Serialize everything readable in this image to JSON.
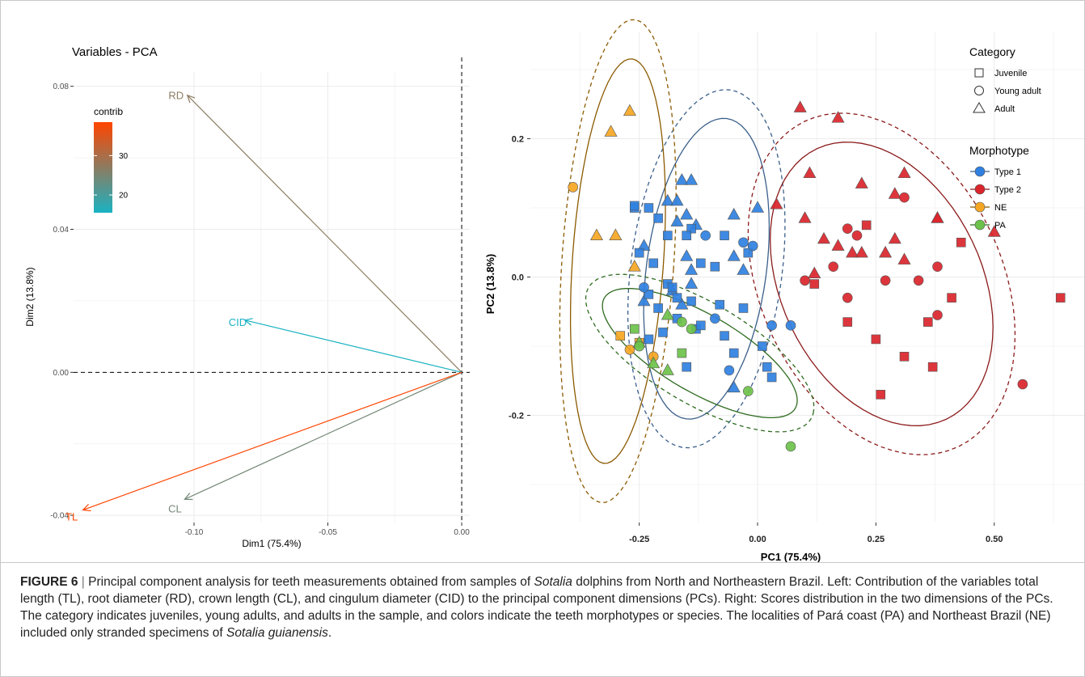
{
  "caption": {
    "label": "FIGURE 6",
    "separator": " | ",
    "parts": [
      {
        "t": "Principal component analysis for teeth measurements obtained from samples of ",
        "i": false
      },
      {
        "t": "Sotalia",
        "i": true
      },
      {
        "t": " dolphins from North and Northeastern Brazil. Left: Contribution of the variables total length (TL), root diameter (RD), crown length (CL), and cingulum diameter (CID) to the principal component dimensions (PCs). Right: Scores distribution in the two dimensions of the PCs. The category indicates juveniles, young adults, and adults in the sample, and colors indicate the teeth morphotypes or species. The localities of Pará coast (PA) and Northeast Brazil (NE) included only stranded specimens of ",
        "i": false
      },
      {
        "t": "Sotalia guianensis",
        "i": true
      },
      {
        "t": ".",
        "i": false
      }
    ]
  },
  "chart_data": [
    {
      "type": "scatter",
      "title": "Variables - PCA",
      "xlabel": "Dim1 (75.4%)",
      "ylabel": "Dim2 (13.8%)",
      "xlim": [
        -0.145,
        0.003
      ],
      "ylim": [
        -0.042,
        0.084
      ],
      "xticks": [
        -0.1,
        -0.05,
        0.0
      ],
      "xtick_labels": [
        "-0.10",
        "-0.05",
        "0.00"
      ],
      "yticks": [
        -0.04,
        0.0,
        0.04,
        0.08
      ],
      "ytick_labels": [
        "-0.04",
        "0.00",
        "0.04",
        "0.08"
      ],
      "grid": true,
      "legend": {
        "title": "contrib",
        "position": "top-left",
        "ticks": [
          20,
          30
        ],
        "tick_labels": [
          "20",
          "30"
        ],
        "range": [
          15.5,
          38.5
        ],
        "low_color": "#1ab2c2",
        "high_color": "#ff4500"
      },
      "arrows": [
        {
          "label": "RD",
          "x": -0.1025,
          "y": 0.0775,
          "contrib": 27.0
        },
        {
          "label": "CID",
          "x": -0.081,
          "y": 0.0146,
          "contrib": 15.5
        },
        {
          "label": "CL",
          "x": -0.1035,
          "y": -0.0355,
          "contrib": 24.5
        },
        {
          "label": "TL",
          "x": -0.1415,
          "y": -0.0385,
          "contrib": 38.5
        }
      ]
    },
    {
      "type": "scatter",
      "xlabel": "PC1 (75.4%)",
      "ylabel": "PC2 (13.8%)",
      "xlim": [
        -0.48,
        0.69
      ],
      "ylim": [
        -0.355,
        0.355
      ],
      "xticks": [
        -0.25,
        0.0,
        0.25,
        0.5
      ],
      "xtick_labels": [
        "-0.25",
        "0.00",
        "0.25",
        "0.50"
      ],
      "yticks": [
        -0.2,
        0.0,
        0.2
      ],
      "ytick_labels": [
        "-0.2",
        "0.0",
        "0.2"
      ],
      "grid": true,
      "legend": {
        "position": "right",
        "category_title": "Category",
        "categories": [
          "Juvenile",
          "Young adult",
          "Adult"
        ],
        "morphotype_title": "Morphotype",
        "morphotypes": [
          "Type 1",
          "Type 2",
          "NE",
          "PA"
        ]
      },
      "colors": {
        "Type 1": "#2f80e0",
        "Type 2": "#d9252b",
        "NE": "#f5a623",
        "PA": "#6cc24a"
      },
      "ellipse_colors": {
        "Type 1": "#3a5f8a",
        "Type 2": "#8b1a1a",
        "NE": "#8b5a00",
        "PA": "#2e6b1f"
      },
      "ellipses": [
        {
          "group": "Type 1",
          "style": "solid",
          "cx": -0.108,
          "cy": 0.012,
          "rx": 0.125,
          "ry": 0.222,
          "angle": -14
        },
        {
          "group": "Type 1",
          "style": "dashed",
          "cx": -0.108,
          "cy": 0.012,
          "rx": 0.158,
          "ry": 0.264,
          "angle": -14
        },
        {
          "group": "Type 2",
          "style": "solid",
          "cx": 0.262,
          "cy": -0.01,
          "rx": 0.255,
          "ry": 0.18,
          "angle": -33
        },
        {
          "group": "Type 2",
          "style": "dashed",
          "cx": 0.262,
          "cy": -0.01,
          "rx": 0.305,
          "ry": 0.218,
          "angle": -33
        },
        {
          "group": "NE",
          "style": "solid",
          "cx": -0.295,
          "cy": 0.023,
          "rx": 0.096,
          "ry": 0.294,
          "angle": -6
        },
        {
          "group": "NE",
          "style": "dashed",
          "cx": -0.295,
          "cy": 0.023,
          "rx": 0.118,
          "ry": 0.351,
          "angle": -6
        },
        {
          "group": "PA",
          "style": "solid",
          "cx": -0.122,
          "cy": -0.11,
          "rx": 0.218,
          "ry": 0.06,
          "angle": -20
        },
        {
          "group": "PA",
          "style": "dashed",
          "cx": -0.122,
          "cy": -0.11,
          "rx": 0.255,
          "ry": 0.078,
          "angle": -20
        }
      ],
      "points": [
        {
          "x": -0.19,
          "y": 0.11,
          "g": "Type 1",
          "c": "Adult"
        },
        {
          "x": -0.16,
          "y": 0.14,
          "g": "Type 1",
          "c": "Adult"
        },
        {
          "x": -0.14,
          "y": 0.14,
          "g": "Type 1",
          "c": "Adult"
        },
        {
          "x": -0.17,
          "y": 0.11,
          "g": "Type 1",
          "c": "Adult"
        },
        {
          "x": -0.15,
          "y": 0.09,
          "g": "Type 1",
          "c": "Adult"
        },
        {
          "x": -0.13,
          "y": 0.075,
          "g": "Type 1",
          "c": "Adult"
        },
        {
          "x": -0.17,
          "y": 0.08,
          "g": "Type 1",
          "c": "Adult"
        },
        {
          "x": -0.05,
          "y": 0.09,
          "g": "Type 1",
          "c": "Adult"
        },
        {
          "x": 0.0,
          "y": 0.1,
          "g": "Type 1",
          "c": "Adult"
        },
        {
          "x": -0.24,
          "y": 0.045,
          "g": "Type 1",
          "c": "Adult"
        },
        {
          "x": -0.15,
          "y": 0.03,
          "g": "Type 1",
          "c": "Adult"
        },
        {
          "x": -0.05,
          "y": 0.03,
          "g": "Type 1",
          "c": "Adult"
        },
        {
          "x": -0.14,
          "y": 0.01,
          "g": "Type 1",
          "c": "Adult"
        },
        {
          "x": -0.14,
          "y": -0.01,
          "g": "Type 1",
          "c": "Adult"
        },
        {
          "x": -0.03,
          "y": 0.01,
          "g": "Type 1",
          "c": "Adult"
        },
        {
          "x": -0.18,
          "y": -0.02,
          "g": "Type 1",
          "c": "Adult"
        },
        {
          "x": -0.16,
          "y": -0.04,
          "g": "Type 1",
          "c": "Adult"
        },
        {
          "x": -0.24,
          "y": -0.035,
          "g": "Type 1",
          "c": "Adult"
        },
        {
          "x": -0.05,
          "y": -0.16,
          "g": "Type 1",
          "c": "Adult"
        },
        {
          "x": -0.26,
          "y": 0.1,
          "g": "Type 1",
          "c": "Juvenile"
        },
        {
          "x": -0.26,
          "y": 0.103,
          "g": "Type 1",
          "c": "Juvenile"
        },
        {
          "x": -0.23,
          "y": 0.1,
          "g": "Type 1",
          "c": "Juvenile"
        },
        {
          "x": -0.21,
          "y": 0.085,
          "g": "Type 1",
          "c": "Juvenile"
        },
        {
          "x": -0.19,
          "y": 0.06,
          "g": "Type 1",
          "c": "Juvenile"
        },
        {
          "x": -0.14,
          "y": 0.07,
          "g": "Type 1",
          "c": "Juvenile"
        },
        {
          "x": -0.15,
          "y": 0.06,
          "g": "Type 1",
          "c": "Juvenile"
        },
        {
          "x": -0.07,
          "y": 0.06,
          "g": "Type 1",
          "c": "Juvenile"
        },
        {
          "x": -0.25,
          "y": 0.035,
          "g": "Type 1",
          "c": "Juvenile"
        },
        {
          "x": -0.22,
          "y": 0.02,
          "g": "Type 1",
          "c": "Juvenile"
        },
        {
          "x": -0.12,
          "y": 0.02,
          "g": "Type 1",
          "c": "Juvenile"
        },
        {
          "x": -0.02,
          "y": 0.035,
          "g": "Type 1",
          "c": "Juvenile"
        },
        {
          "x": -0.09,
          "y": 0.015,
          "g": "Type 1",
          "c": "Juvenile"
        },
        {
          "x": -0.19,
          "y": -0.01,
          "g": "Type 1",
          "c": "Juvenile"
        },
        {
          "x": -0.18,
          "y": -0.015,
          "g": "Type 1",
          "c": "Juvenile"
        },
        {
          "x": -0.23,
          "y": -0.025,
          "g": "Type 1",
          "c": "Juvenile"
        },
        {
          "x": -0.17,
          "y": -0.03,
          "g": "Type 1",
          "c": "Juvenile"
        },
        {
          "x": -0.21,
          "y": -0.045,
          "g": "Type 1",
          "c": "Juvenile"
        },
        {
          "x": -0.14,
          "y": -0.035,
          "g": "Type 1",
          "c": "Juvenile"
        },
        {
          "x": -0.08,
          "y": -0.04,
          "g": "Type 1",
          "c": "Juvenile"
        },
        {
          "x": -0.03,
          "y": -0.045,
          "g": "Type 1",
          "c": "Juvenile"
        },
        {
          "x": -0.17,
          "y": -0.06,
          "g": "Type 1",
          "c": "Juvenile"
        },
        {
          "x": -0.13,
          "y": -0.075,
          "g": "Type 1",
          "c": "Juvenile"
        },
        {
          "x": -0.2,
          "y": -0.08,
          "g": "Type 1",
          "c": "Juvenile"
        },
        {
          "x": -0.07,
          "y": -0.085,
          "g": "Type 1",
          "c": "Juvenile"
        },
        {
          "x": -0.12,
          "y": -0.07,
          "g": "Type 1",
          "c": "Juvenile"
        },
        {
          "x": -0.23,
          "y": -0.09,
          "g": "Type 1",
          "c": "Juvenile"
        },
        {
          "x": 0.01,
          "y": -0.1,
          "g": "Type 1",
          "c": "Juvenile"
        },
        {
          "x": -0.05,
          "y": -0.11,
          "g": "Type 1",
          "c": "Juvenile"
        },
        {
          "x": 0.02,
          "y": -0.13,
          "g": "Type 1",
          "c": "Juvenile"
        },
        {
          "x": 0.03,
          "y": -0.145,
          "g": "Type 1",
          "c": "Juvenile"
        },
        {
          "x": -0.15,
          "y": -0.13,
          "g": "Type 1",
          "c": "Juvenile"
        },
        {
          "x": -0.11,
          "y": 0.06,
          "g": "Type 1",
          "c": "Young adult"
        },
        {
          "x": -0.03,
          "y": 0.05,
          "g": "Type 1",
          "c": "Young adult"
        },
        {
          "x": -0.01,
          "y": 0.045,
          "g": "Type 1",
          "c": "Young adult"
        },
        {
          "x": -0.24,
          "y": -0.015,
          "g": "Type 1",
          "c": "Young adult"
        },
        {
          "x": -0.09,
          "y": -0.06,
          "g": "Type 1",
          "c": "Young adult"
        },
        {
          "x": 0.03,
          "y": -0.07,
          "g": "Type 1",
          "c": "Young adult"
        },
        {
          "x": 0.07,
          "y": -0.07,
          "g": "Type 1",
          "c": "Young adult"
        },
        {
          "x": -0.06,
          "y": -0.135,
          "g": "Type 1",
          "c": "Young adult"
        },
        {
          "x": 0.17,
          "y": 0.23,
          "g": "Type 2",
          "c": "Adult"
        },
        {
          "x": 0.09,
          "y": 0.245,
          "g": "Type 2",
          "c": "Adult"
        },
        {
          "x": 0.11,
          "y": 0.15,
          "g": "Type 2",
          "c": "Adult"
        },
        {
          "x": 0.22,
          "y": 0.135,
          "g": "Type 2",
          "c": "Adult"
        },
        {
          "x": 0.31,
          "y": 0.15,
          "g": "Type 2",
          "c": "Adult"
        },
        {
          "x": 0.04,
          "y": 0.105,
          "g": "Type 2",
          "c": "Adult"
        },
        {
          "x": 0.1,
          "y": 0.085,
          "g": "Type 2",
          "c": "Adult"
        },
        {
          "x": 0.29,
          "y": 0.12,
          "g": "Type 2",
          "c": "Adult"
        },
        {
          "x": 0.38,
          "y": 0.085,
          "g": "Type 2",
          "c": "Adult"
        },
        {
          "x": 0.38,
          "y": 0.085,
          "g": "Type 2",
          "c": "Adult"
        },
        {
          "x": 0.14,
          "y": 0.055,
          "g": "Type 2",
          "c": "Adult"
        },
        {
          "x": 0.29,
          "y": 0.055,
          "g": "Type 2",
          "c": "Adult"
        },
        {
          "x": 0.5,
          "y": 0.065,
          "g": "Type 2",
          "c": "Adult"
        },
        {
          "x": 0.17,
          "y": 0.045,
          "g": "Type 2",
          "c": "Adult"
        },
        {
          "x": 0.2,
          "y": 0.035,
          "g": "Type 2",
          "c": "Adult"
        },
        {
          "x": 0.22,
          "y": 0.035,
          "g": "Type 2",
          "c": "Adult"
        },
        {
          "x": 0.27,
          "y": 0.035,
          "g": "Type 2",
          "c": "Adult"
        },
        {
          "x": 0.31,
          "y": 0.025,
          "g": "Type 2",
          "c": "Adult"
        },
        {
          "x": 0.12,
          "y": 0.005,
          "g": "Type 2",
          "c": "Adult"
        },
        {
          "x": 0.23,
          "y": 0.075,
          "g": "Type 2",
          "c": "Juvenile"
        },
        {
          "x": 0.43,
          "y": 0.05,
          "g": "Type 2",
          "c": "Juvenile"
        },
        {
          "x": 0.12,
          "y": -0.01,
          "g": "Type 2",
          "c": "Juvenile"
        },
        {
          "x": 0.41,
          "y": -0.03,
          "g": "Type 2",
          "c": "Juvenile"
        },
        {
          "x": 0.19,
          "y": -0.065,
          "g": "Type 2",
          "c": "Juvenile"
        },
        {
          "x": 0.36,
          "y": -0.065,
          "g": "Type 2",
          "c": "Juvenile"
        },
        {
          "x": 0.25,
          "y": -0.09,
          "g": "Type 2",
          "c": "Juvenile"
        },
        {
          "x": 0.31,
          "y": -0.115,
          "g": "Type 2",
          "c": "Juvenile"
        },
        {
          "x": 0.37,
          "y": -0.13,
          "g": "Type 2",
          "c": "Juvenile"
        },
        {
          "x": 0.26,
          "y": -0.17,
          "g": "Type 2",
          "c": "Juvenile"
        },
        {
          "x": 0.64,
          "y": -0.03,
          "g": "Type 2",
          "c": "Juvenile"
        },
        {
          "x": 0.31,
          "y": 0.115,
          "g": "Type 2",
          "c": "Young adult"
        },
        {
          "x": 0.19,
          "y": 0.07,
          "g": "Type 2",
          "c": "Young adult"
        },
        {
          "x": 0.21,
          "y": 0.06,
          "g": "Type 2",
          "c": "Young adult"
        },
        {
          "x": 0.16,
          "y": 0.015,
          "g": "Type 2",
          "c": "Young adult"
        },
        {
          "x": 0.38,
          "y": 0.015,
          "g": "Type 2",
          "c": "Young adult"
        },
        {
          "x": 0.1,
          "y": -0.005,
          "g": "Type 2",
          "c": "Young adult"
        },
        {
          "x": 0.27,
          "y": -0.005,
          "g": "Type 2",
          "c": "Young adult"
        },
        {
          "x": 0.34,
          "y": -0.005,
          "g": "Type 2",
          "c": "Young adult"
        },
        {
          "x": 0.19,
          "y": -0.03,
          "g": "Type 2",
          "c": "Young adult"
        },
        {
          "x": 0.38,
          "y": -0.055,
          "g": "Type 2",
          "c": "Young adult"
        },
        {
          "x": 0.56,
          "y": -0.155,
          "g": "Type 2",
          "c": "Young adult"
        },
        {
          "x": -0.31,
          "y": 0.21,
          "g": "NE",
          "c": "Adult"
        },
        {
          "x": -0.27,
          "y": 0.24,
          "g": "NE",
          "c": "Adult"
        },
        {
          "x": -0.34,
          "y": 0.06,
          "g": "NE",
          "c": "Adult"
        },
        {
          "x": -0.3,
          "y": 0.06,
          "g": "NE",
          "c": "Adult"
        },
        {
          "x": -0.26,
          "y": 0.015,
          "g": "NE",
          "c": "Adult"
        },
        {
          "x": -0.29,
          "y": -0.085,
          "g": "NE",
          "c": "Juvenile"
        },
        {
          "x": -0.25,
          "y": -0.095,
          "g": "NE",
          "c": "Juvenile"
        },
        {
          "x": -0.39,
          "y": 0.13,
          "g": "NE",
          "c": "Young adult"
        },
        {
          "x": -0.27,
          "y": -0.105,
          "g": "NE",
          "c": "Young adult"
        },
        {
          "x": -0.22,
          "y": -0.115,
          "g": "NE",
          "c": "Young adult"
        },
        {
          "x": -0.22,
          "y": -0.125,
          "g": "PA",
          "c": "Adult"
        },
        {
          "x": -0.25,
          "y": -0.095,
          "g": "PA",
          "c": "Adult"
        },
        {
          "x": -0.19,
          "y": -0.055,
          "g": "PA",
          "c": "Adult"
        },
        {
          "x": -0.19,
          "y": -0.135,
          "g": "PA",
          "c": "Adult"
        },
        {
          "x": -0.26,
          "y": -0.075,
          "g": "PA",
          "c": "Juvenile"
        },
        {
          "x": -0.16,
          "y": -0.11,
          "g": "PA",
          "c": "Juvenile"
        },
        {
          "x": -0.25,
          "y": -0.1,
          "g": "PA",
          "c": "Young adult"
        },
        {
          "x": -0.16,
          "y": -0.065,
          "g": "PA",
          "c": "Young adult"
        },
        {
          "x": -0.14,
          "y": -0.075,
          "g": "PA",
          "c": "Young adult"
        },
        {
          "x": -0.02,
          "y": -0.165,
          "g": "PA",
          "c": "Young adult"
        },
        {
          "x": 0.07,
          "y": -0.245,
          "g": "PA",
          "c": "Young adult"
        }
      ]
    }
  ]
}
